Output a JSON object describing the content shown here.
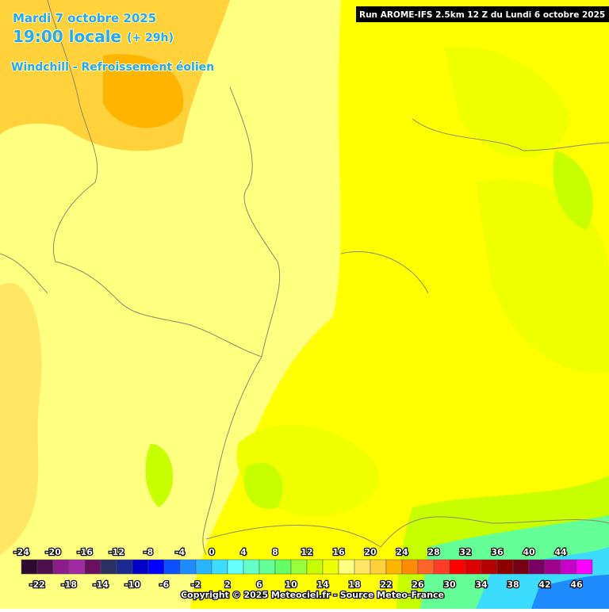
{
  "header": {
    "date": "Mardi 7 octobre 2025",
    "time": "19:00 locale",
    "offset": "(+ 29h)",
    "parameter": "Windchill - Refroissement éolien",
    "run": "Run AROME-IFS 2.5km 12 Z du Lundi 6 octobre 2025"
  },
  "legend": {
    "values": [
      -24,
      -22,
      -20,
      -18,
      -16,
      -14,
      -12,
      -10,
      -8,
      -6,
      -4,
      -2,
      0,
      2,
      4,
      6,
      8,
      10,
      12,
      14,
      16,
      18,
      20,
      22,
      24,
      26,
      28,
      30,
      32,
      34,
      36,
      38,
      40,
      42,
      44,
      46
    ],
    "colors": [
      "#2e0a30",
      "#4e0e4e",
      "#8c1c8c",
      "#a22aa2",
      "#6a1060",
      "#2a3060",
      "#1a2a90",
      "#0000c8",
      "#0000ff",
      "#0a50ff",
      "#1e8cff",
      "#28b4ff",
      "#3cdcff",
      "#64ffff",
      "#64ffc8",
      "#64ff96",
      "#64ff64",
      "#96ff3c",
      "#c8ff00",
      "#f0ff00",
      "#ffff80",
      "#ffe664",
      "#ffd23c",
      "#ffb400",
      "#ff8c00",
      "#ff6428",
      "#ff3c28",
      "#ff0000",
      "#dc0000",
      "#b40000",
      "#8c0000",
      "#780014",
      "#780064",
      "#a0008c",
      "#c800c8",
      "#ff00ff"
    ]
  },
  "footer": {
    "copyright": "Copyright © 2025 Meteociel.fr - Source Meteo-France"
  }
}
